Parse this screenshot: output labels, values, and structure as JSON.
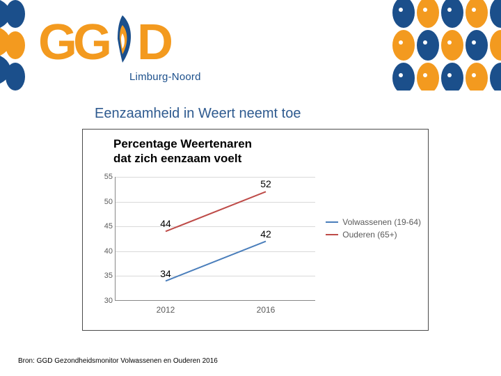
{
  "header": {
    "logo_text_1": "G",
    "logo_text_2": "G",
    "logo_text_3": "D",
    "sub_brand": "Limburg-Noord",
    "brand_orange": "#f39a1f",
    "brand_blue": "#1b4f8b",
    "deco_pattern_colors": [
      "#1b4f8b",
      "#f39a1f",
      "#ffffff"
    ]
  },
  "page": {
    "title": "Eenzaamheid in Weert neemt toe",
    "title_color": "#2e5a8f",
    "title_fontsize": 20
  },
  "chart": {
    "type": "line",
    "title": "Percentage Weertenaren\ndat zich eenzaam voelt",
    "title_fontsize": 17,
    "title_weight": "bold",
    "title_color": "#000000",
    "x_categories": [
      "2012",
      "2016"
    ],
    "ylim": [
      30,
      55
    ],
    "ytick_step": 5,
    "yticks": [
      30,
      35,
      40,
      45,
      50,
      55
    ],
    "grid_color": "#d9d9d9",
    "axis_color": "#878787",
    "background_color": "#ffffff",
    "box_border_color": "#4a4a4a",
    "tick_font_color": "#5a5a5a",
    "tick_fontsize": 11,
    "label_fontsize": 14,
    "line_width": 2,
    "series": [
      {
        "name": "Volwassenen (19-64)",
        "color": "#4a7ebb",
        "values": [
          34,
          42
        ],
        "labels": [
          "34",
          "42"
        ]
      },
      {
        "name": "Ouderen (65+)",
        "color": "#be4b48",
        "values": [
          44,
          52
        ],
        "labels": [
          "44",
          "52"
        ]
      }
    ],
    "legend": {
      "position": "right",
      "fontsize": 12,
      "text_color": "#5a5a5a"
    }
  },
  "source": {
    "text": "Bron: GGD Gezondheidsmonitor Volwassenen en Ouderen 2016",
    "fontsize": 10,
    "color": "#000000"
  }
}
